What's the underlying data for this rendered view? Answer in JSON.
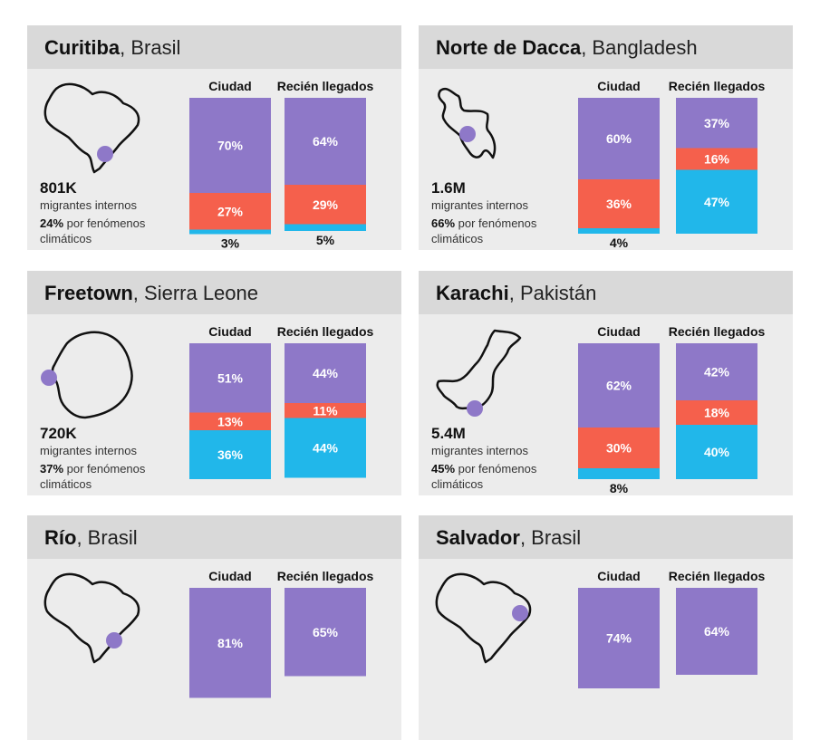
{
  "colors": {
    "purple": "#8e78c8",
    "red": "#f5604c",
    "blue": "#21b7ea",
    "dot": "#8e78c8"
  },
  "column_labels": [
    "Ciudad",
    "Recién llegados"
  ],
  "stat_label": "migrantes internos",
  "climate_label": "por fenómenos climáticos",
  "cards": [
    {
      "city": "Curitiba",
      "country": ", Brasil",
      "map_icon": "brazil-outline-icon",
      "migrants": "801K",
      "climate_pct": "24%"
    },
    {
      "city": "Norte de Dacca",
      "country": ", Bangladesh",
      "map_icon": "bangladesh-outline-icon",
      "migrants": "1.6M",
      "climate_pct": "66%"
    },
    {
      "city": "Freetown",
      "country": ", Sierra Leone",
      "map_icon": "sierra-leone-outline-icon",
      "migrants": "720K",
      "climate_pct": "37%"
    },
    {
      "city": "Karachi",
      "country": ", Pakistán",
      "map_icon": "pakistan-outline-icon",
      "migrants": "5.4M",
      "climate_pct": "45%"
    },
    {
      "city": "Río",
      "country": ", Brasil",
      "map_icon": "brazil-outline-icon",
      "migrants": "",
      "climate_pct": ""
    },
    {
      "city": "Salvador",
      "country": ", Brasil",
      "map_icon": "brazil-outline-icon",
      "migrants": "",
      "climate_pct": ""
    }
  ],
  "chart_data": [
    {
      "type": "bar",
      "stacked": true,
      "city": "Curitiba",
      "categories": [
        "Ciudad",
        "Recién llegados"
      ],
      "series": [
        {
          "values": [
            70,
            64
          ]
        },
        {
          "values": [
            27,
            29
          ]
        },
        {
          "values": [
            3,
            5
          ]
        }
      ],
      "labels": [
        [
          "70%",
          "27%",
          "3%"
        ],
        [
          "64%",
          "29%",
          "5%"
        ]
      ]
    },
    {
      "type": "bar",
      "stacked": true,
      "city": "Norte de Dacca",
      "categories": [
        "Ciudad",
        "Recién llegados"
      ],
      "series": [
        {
          "values": [
            60,
            37
          ]
        },
        {
          "values": [
            36,
            16
          ]
        },
        {
          "values": [
            4,
            47
          ]
        }
      ],
      "labels": [
        [
          "60%",
          "36%",
          "4%"
        ],
        [
          "37%",
          "16%",
          "47%"
        ]
      ]
    },
    {
      "type": "bar",
      "stacked": true,
      "city": "Freetown",
      "categories": [
        "Ciudad",
        "Recién llegados"
      ],
      "series": [
        {
          "values": [
            51,
            44
          ]
        },
        {
          "values": [
            13,
            11
          ]
        },
        {
          "values": [
            36,
            44
          ]
        }
      ],
      "labels": [
        [
          "51%",
          "13%",
          "36%"
        ],
        [
          "44%",
          "11%",
          "44%"
        ]
      ]
    },
    {
      "type": "bar",
      "stacked": true,
      "city": "Karachi",
      "categories": [
        "Ciudad",
        "Recién llegados"
      ],
      "series": [
        {
          "values": [
            62,
            42
          ]
        },
        {
          "values": [
            30,
            18
          ]
        },
        {
          "values": [
            8,
            40
          ]
        }
      ],
      "labels": [
        [
          "62%",
          "30%",
          "8%"
        ],
        [
          "42%",
          "18%",
          "40%"
        ]
      ]
    },
    {
      "type": "bar",
      "stacked": true,
      "city": "Río",
      "categories": [
        "Ciudad",
        "Recién llegados"
      ],
      "series": [
        {
          "values": [
            81,
            65
          ]
        }
      ],
      "labels": [
        [
          "81%"
        ],
        [
          "65%"
        ]
      ]
    },
    {
      "type": "bar",
      "stacked": true,
      "city": "Salvador",
      "categories": [
        "Ciudad",
        "Recién llegados"
      ],
      "series": [
        {
          "values": [
            74,
            64
          ]
        }
      ],
      "labels": [
        [
          "74%"
        ],
        [
          "64%"
        ]
      ]
    }
  ]
}
